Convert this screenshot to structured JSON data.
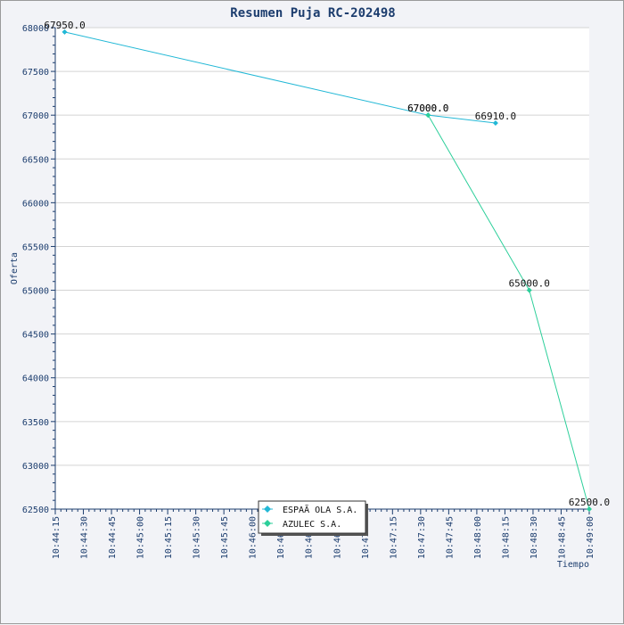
{
  "chart_data": {
    "type": "line",
    "title": "Resumen Puja RC-202498",
    "xlabel": "Tiempo",
    "ylabel": "Oferta",
    "ylim": [
      62500,
      68000
    ],
    "y_ticks": [
      62500,
      63000,
      63500,
      64000,
      64500,
      65000,
      65500,
      66000,
      66500,
      67000,
      67500,
      68000
    ],
    "x_range_seconds": [
      "10:44:15",
      "10:49:00"
    ],
    "x_ticks": [
      "10:44:15",
      "10:44:30",
      "10:44:45",
      "10:45:00",
      "10:45:15",
      "10:45:30",
      "10:45:45",
      "10:46:00",
      "10:46:15",
      "10:46:30",
      "10:46:45",
      "10:47:00",
      "10:47:15",
      "10:47:30",
      "10:47:45",
      "10:48:00",
      "10:48:15",
      "10:48:30",
      "10:48:45",
      "10:49:00"
    ],
    "grid": true,
    "legend_position": "bottom-center",
    "series": [
      {
        "name": "ESPAÃ OLA S.A.",
        "color": "#22b8d6",
        "points": [
          {
            "x": "10:44:20",
            "y": 67950,
            "label": "67950.0"
          },
          {
            "x": "10:47:34",
            "y": 67000,
            "label": "67000.0"
          },
          {
            "x": "10:48:10",
            "y": 66910,
            "label": "66910.0"
          }
        ]
      },
      {
        "name": "AZULEC S.A.",
        "color": "#2ccf9a",
        "points": [
          {
            "x": "10:47:34",
            "y": 67000,
            "label": "67000.0"
          },
          {
            "x": "10:48:28",
            "y": 65000,
            "label": "65000.0"
          },
          {
            "x": "10:49:00",
            "y": 62500,
            "label": "62500.0"
          }
        ]
      }
    ]
  }
}
